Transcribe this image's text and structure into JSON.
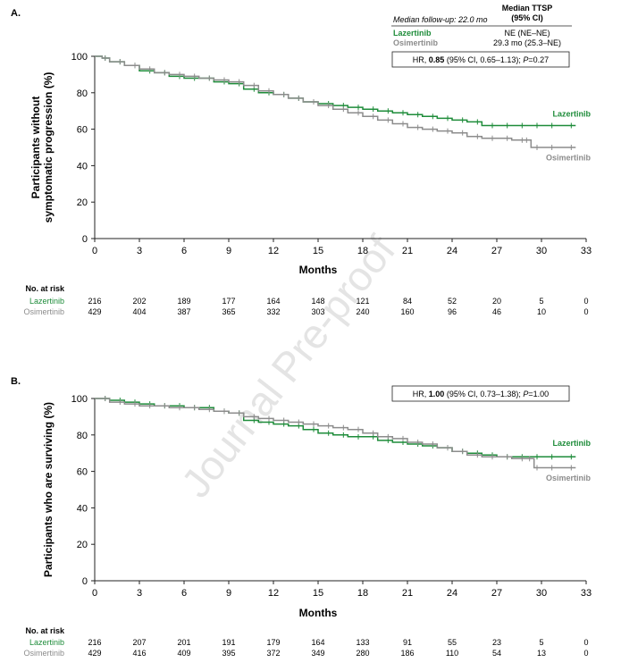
{
  "watermark": "Journal Pre-proof",
  "colors": {
    "lazertinib": "#1e8c3a",
    "osimertinib": "#8c8c8c",
    "axis": "#222222"
  },
  "chart_data": [
    {
      "type": "line",
      "panel_label": "A.",
      "ylabel_lines": [
        "Participants without",
        "symptomatic progression (%)"
      ],
      "xlabel": "Months",
      "xlim": [
        0,
        33
      ],
      "ylim": [
        0,
        100
      ],
      "x_ticks": [
        0,
        3,
        6,
        9,
        12,
        15,
        18,
        21,
        24,
        27,
        30,
        33
      ],
      "y_ticks": [
        0,
        20,
        40,
        60,
        80,
        100
      ],
      "info_box": {
        "followup": "Median follow-up: 22.0 mo",
        "header_line1": "Median TTSP",
        "header_line2": "(95% CI)",
        "rows": [
          {
            "name": "Lazertinib",
            "value": "NE (NE–NE)",
            "color": "#1e8c3a"
          },
          {
            "name": "Osimertinib",
            "value": "29.3 mo (25.3–NE)",
            "color": "#8c8c8c"
          }
        ]
      },
      "hr_box": {
        "pre": "HR, ",
        "bold": "0.85",
        "mid": " (95% CI, 0.65–1.13); ",
        "italic": "P",
        "post": "=0.27"
      },
      "series": [
        {
          "name": "Lazertinib",
          "color": "#1e8c3a",
          "label_y": 67,
          "x": [
            0,
            0.5,
            1,
            2,
            3,
            4,
            5,
            6,
            7,
            8,
            9,
            10,
            11,
            12,
            13,
            14,
            15,
            16,
            17,
            18,
            19,
            20,
            21,
            22,
            23,
            24,
            25,
            26,
            27,
            28,
            29,
            30,
            31,
            32.3
          ],
          "y": [
            100,
            99,
            97,
            95,
            92,
            91,
            89,
            88,
            88,
            86,
            85,
            82,
            80,
            79,
            77,
            75,
            74,
            73,
            72,
            71,
            70,
            69,
            68,
            67,
            66,
            65,
            64,
            62,
            62,
            62,
            62,
            62,
            62,
            62
          ]
        },
        {
          "name": "Osimertinib",
          "color": "#8c8c8c",
          "label_y": 43,
          "x": [
            0,
            0.5,
            1,
            2,
            3,
            4,
            5,
            6,
            7,
            8,
            9,
            10,
            11,
            12,
            13,
            14,
            15,
            16,
            17,
            18,
            19,
            20,
            21,
            22,
            23,
            24,
            25,
            26,
            27,
            28,
            29,
            29.3,
            30,
            31,
            32.3
          ],
          "y": [
            100,
            99,
            97,
            95,
            93,
            91,
            90,
            89,
            88,
            87,
            86,
            84,
            81,
            79,
            77,
            75,
            73,
            71,
            69,
            67,
            65,
            63,
            61,
            60,
            59,
            58,
            56,
            55,
            55,
            54,
            54,
            50,
            50,
            50,
            50
          ]
        }
      ],
      "risk_table": {
        "title": "No. at risk",
        "rows": [
          {
            "name": "Lazertinib",
            "color": "#1e8c3a",
            "values": [
              "216",
              "202",
              "189",
              "177",
              "164",
              "148",
              "121",
              "84",
              "52",
              "20",
              "5",
              "0"
            ]
          },
          {
            "name": "Osimertinib",
            "color": "#8c8c8c",
            "values": [
              "429",
              "404",
              "387",
              "365",
              "332",
              "303",
              "240",
              "160",
              "96",
              "46",
              "10",
              "0"
            ]
          }
        ]
      }
    },
    {
      "type": "line",
      "panel_label": "B.",
      "ylabel_lines": [
        "Participants who are surviving (%)"
      ],
      "xlabel": "Months",
      "xlim": [
        0,
        33
      ],
      "ylim": [
        0,
        100
      ],
      "x_ticks": [
        0,
        3,
        6,
        9,
        12,
        15,
        18,
        21,
        24,
        27,
        30,
        33
      ],
      "y_ticks": [
        0,
        20,
        40,
        60,
        80,
        100
      ],
      "hr_box": {
        "pre": "HR, ",
        "bold": "1.00",
        "mid": " (95% CI, 0.73–1.38); ",
        "italic": "P",
        "post": "=1.00"
      },
      "series": [
        {
          "name": "Lazertinib",
          "color": "#1e8c3a",
          "label_y": 74,
          "x": [
            0,
            1,
            2,
            3,
            4,
            5,
            6,
            7,
            8,
            9,
            10,
            11,
            12,
            13,
            14,
            15,
            16,
            17,
            18,
            19,
            20,
            21,
            22,
            23,
            24,
            25,
            26,
            27,
            28,
            29,
            30,
            31,
            32.3
          ],
          "y": [
            100,
            99,
            98,
            97,
            96,
            96,
            95,
            95,
            93,
            92,
            88,
            87,
            86,
            85,
            83,
            81,
            80,
            79,
            79,
            77,
            76,
            75,
            74,
            73,
            71,
            70,
            69,
            68,
            68,
            68,
            68,
            68,
            68
          ]
        },
        {
          "name": "Osimertinib",
          "color": "#8c8c8c",
          "label_y": 55,
          "x": [
            0,
            1,
            2,
            3,
            4,
            5,
            6,
            7,
            8,
            9,
            10,
            11,
            12,
            13,
            14,
            15,
            16,
            17,
            18,
            19,
            20,
            21,
            22,
            23,
            24,
            25,
            26,
            27,
            28,
            29,
            29.5,
            30,
            31,
            32.3
          ],
          "y": [
            100,
            98,
            97,
            96,
            96,
            95,
            95,
            94,
            93,
            92,
            90,
            89,
            88,
            87,
            86,
            85,
            84,
            83,
            81,
            79,
            78,
            76,
            75,
            73,
            71,
            69,
            68,
            68,
            67,
            67,
            62,
            62,
            62,
            62
          ]
        }
      ],
      "risk_table": {
        "title": "No. at risk",
        "rows": [
          {
            "name": "Lazertinib",
            "color": "#1e8c3a",
            "values": [
              "216",
              "207",
              "201",
              "191",
              "179",
              "164",
              "133",
              "91",
              "55",
              "23",
              "5",
              "0"
            ]
          },
          {
            "name": "Osimertinib",
            "color": "#8c8c8c",
            "values": [
              "429",
              "416",
              "409",
              "395",
              "372",
              "349",
              "280",
              "186",
              "110",
              "54",
              "13",
              "0"
            ]
          }
        ]
      }
    }
  ]
}
